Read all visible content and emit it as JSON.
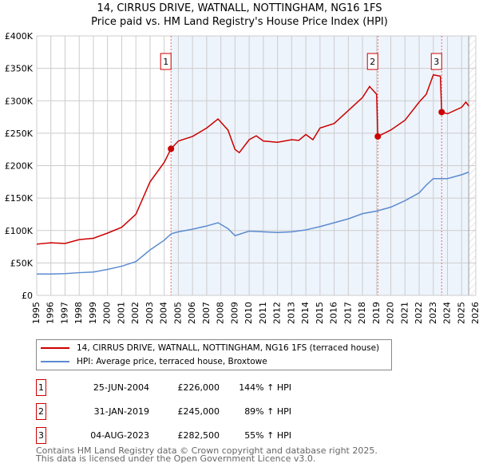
{
  "chart_data": {
    "type": "line",
    "title": "14, CIRRUS DRIVE, WATNALL, NOTTINGHAM, NG16 1FS",
    "subtitle": "Price paid vs. HM Land Registry's House Price Index (HPI)",
    "xlim": [
      1995,
      2026
    ],
    "ylim": [
      0,
      400000
    ],
    "x_ticks": [
      "1995",
      "1996",
      "1997",
      "1998",
      "1999",
      "2000",
      "2001",
      "2002",
      "2003",
      "2004",
      "2005",
      "2006",
      "2007",
      "2008",
      "2009",
      "2010",
      "2011",
      "2012",
      "2013",
      "2014",
      "2015",
      "2016",
      "2017",
      "2018",
      "2019",
      "2020",
      "2021",
      "2022",
      "2023",
      "2024",
      "2025",
      "2026"
    ],
    "y_ticks": [
      {
        "v": 0,
        "label": "£0"
      },
      {
        "v": 50000,
        "label": "£50K"
      },
      {
        "v": 100000,
        "label": "£100K"
      },
      {
        "v": 150000,
        "label": "£150K"
      },
      {
        "v": 200000,
        "label": "£200K"
      },
      {
        "v": 250000,
        "label": "£250K"
      },
      {
        "v": 300000,
        "label": "£300K"
      },
      {
        "v": 350000,
        "label": "£350K"
      },
      {
        "v": 400000,
        "label": "£400K"
      }
    ],
    "grid": true,
    "shaded_range": [
      2004.48,
      2025.5
    ],
    "hatched_from": 2025.5,
    "series": [
      {
        "name": "14, CIRRUS DRIVE, WATNALL, NOTTINGHAM, NG16 1FS (terraced house)",
        "color": "#cc0000",
        "x": [
          1995,
          1996,
          1997,
          1998,
          1999,
          2000,
          2001,
          2002,
          2003,
          2004,
          2004.48,
          2005,
          2006,
          2007,
          2007.8,
          2008.5,
          2009,
          2009.3,
          2010,
          2010.5,
          2011,
          2012,
          2013,
          2013.5,
          2014,
          2014.5,
          2015,
          2016,
          2017,
          2018,
          2018.5,
          2019,
          2019.08,
          2020,
          2021,
          2022,
          2022.5,
          2023,
          2023.5,
          2023.59,
          2024,
          2025,
          2025.3,
          2025.5
        ],
        "y": [
          79000,
          81000,
          80000,
          86000,
          88000,
          96000,
          105000,
          125000,
          175000,
          205000,
          226000,
          238000,
          245000,
          258000,
          272000,
          255000,
          225000,
          220000,
          240000,
          246000,
          238000,
          236000,
          240000,
          239000,
          248000,
          240000,
          258000,
          265000,
          285000,
          305000,
          322000,
          310000,
          245000,
          255000,
          270000,
          298000,
          310000,
          340000,
          338000,
          282500,
          280000,
          290000,
          298000,
          292000
        ]
      },
      {
        "name": "HPI: Average price, terraced house, Broxtowe",
        "color": "#5b8bd0",
        "x": [
          1995,
          1996,
          1997,
          1998,
          1999,
          2000,
          2001,
          2002,
          2003,
          2004,
          2004.5,
          2005,
          2006,
          2007,
          2007.8,
          2008.5,
          2009,
          2010,
          2011,
          2012,
          2013,
          2014,
          2015,
          2016,
          2017,
          2018,
          2019,
          2020,
          2021,
          2022,
          2022.5,
          2023,
          2024,
          2025,
          2025.5
        ],
        "y": [
          33000,
          33000,
          33500,
          35000,
          36000,
          40000,
          45000,
          52000,
          70000,
          85000,
          95000,
          98000,
          102000,
          107000,
          112000,
          103000,
          92000,
          99000,
          98000,
          97000,
          98000,
          101000,
          106000,
          112000,
          118000,
          126000,
          130000,
          136000,
          146000,
          158000,
          170000,
          180000,
          180000,
          186000,
          190000
        ]
      }
    ],
    "sales": [
      {
        "id": "1",
        "x": 2004.48,
        "date": "25-JUN-2004",
        "price": "£226,000",
        "value": 226000,
        "hpi": "144% ↑ HPI"
      },
      {
        "id": "2",
        "x": 2019.08,
        "date": "31-JAN-2019",
        "price": "£245,000",
        "value": 245000,
        "hpi": "89% ↑ HPI"
      },
      {
        "id": "3",
        "x": 2023.59,
        "date": "04-AUG-2023",
        "price": "£282,500",
        "value": 282500,
        "hpi": "55% ↑ HPI"
      }
    ]
  },
  "footer": {
    "line1": "Contains HM Land Registry data © Crown copyright and database right 2025.",
    "line2": "This data is licensed under the Open Government Licence v3.0."
  }
}
